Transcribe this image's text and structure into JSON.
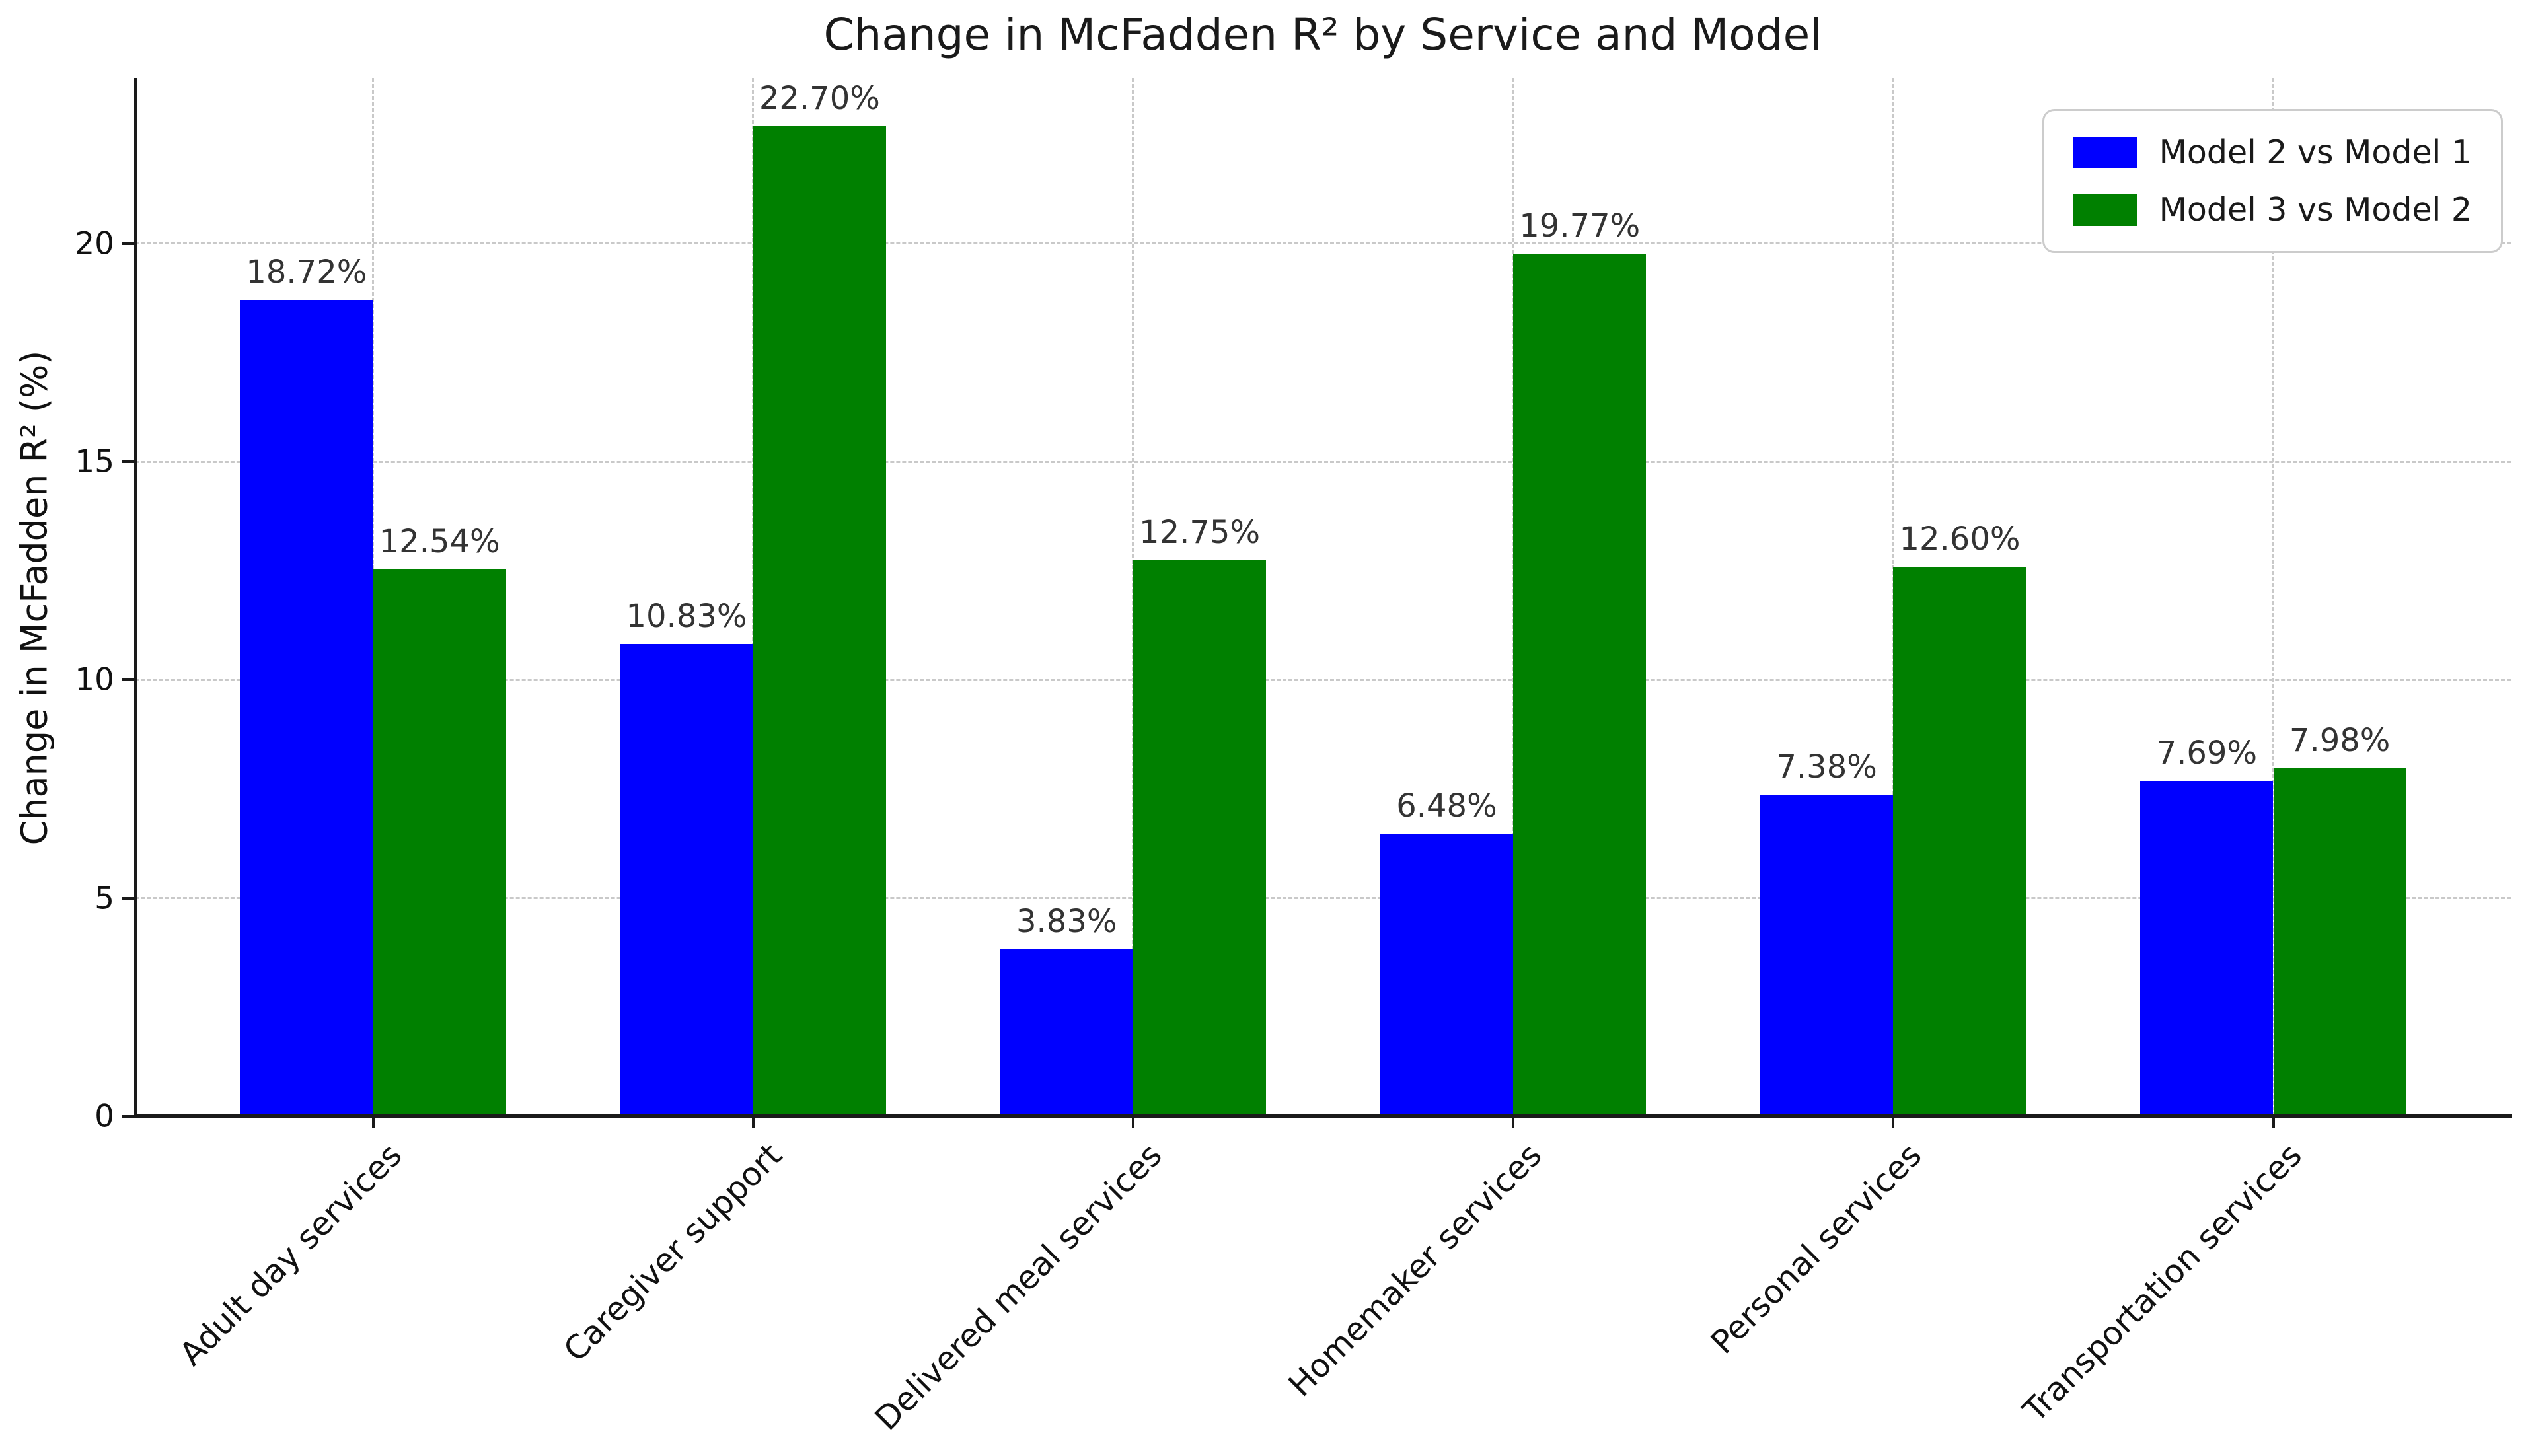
{
  "chart_data": {
    "type": "bar",
    "title": "Change in McFadden R² by Service and Model",
    "ylabel": "Change in McFadden R² (%)",
    "xlabel": "",
    "categories": [
      "Adult day services",
      "Caregiver support",
      "Delivered meal services",
      "Homemaker services",
      "Personal services",
      "Transportation services"
    ],
    "series": [
      {
        "name": "Model 2 vs Model 1",
        "color": "#0000ff",
        "values": [
          18.72,
          10.83,
          3.83,
          6.48,
          7.38,
          7.69
        ]
      },
      {
        "name": "Model 3 vs Model 2",
        "color": "#008000",
        "values": [
          12.54,
          22.7,
          12.75,
          19.77,
          12.6,
          7.98
        ]
      }
    ],
    "value_label_format": "{value}%",
    "yticks": [
      0,
      5,
      10,
      15,
      20
    ],
    "ylim": [
      0,
      23.8
    ],
    "bar_width_fraction": 0.35,
    "grid": "dashed both axes",
    "legend_position": "upper right",
    "x_tick_rotation_deg": 45
  }
}
